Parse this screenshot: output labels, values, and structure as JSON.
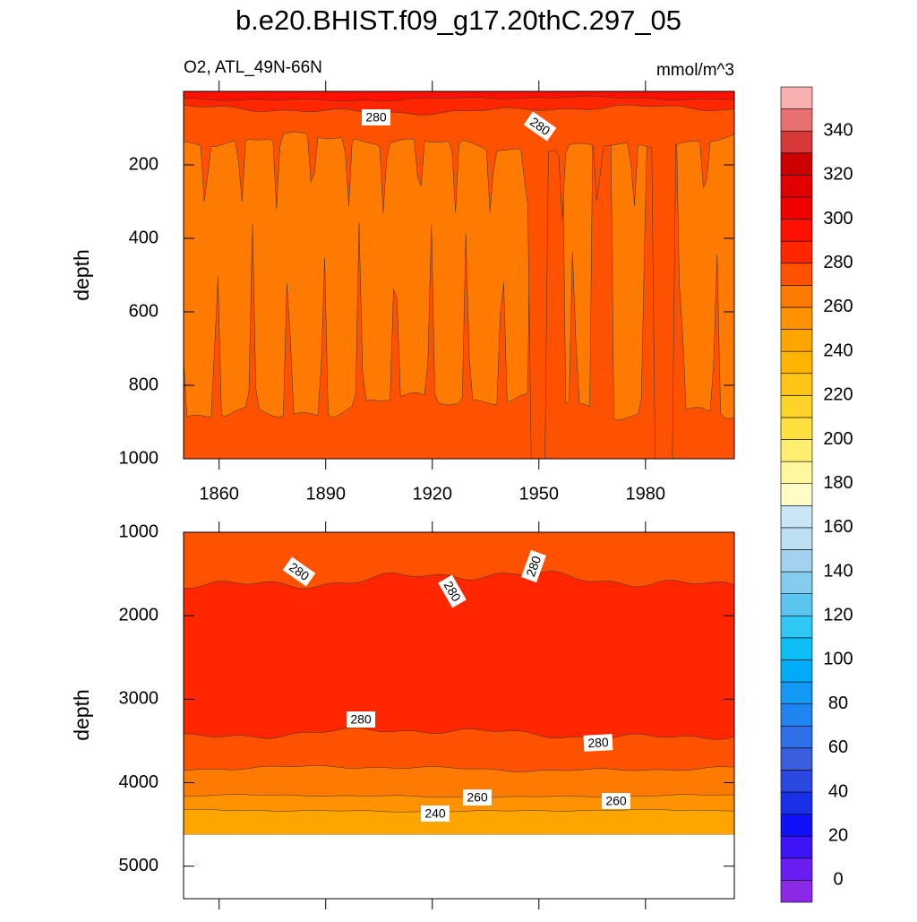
{
  "chart_data": {
    "type": "contour",
    "title": "b.e20.BHIST.f09_g17.20thC.297_05",
    "subtitle": "O2, ATL_49N-66N",
    "units": "mmol/m^3",
    "ylabel": "depth",
    "xlim": [
      1850,
      2005
    ],
    "xticks": [
      1860,
      1890,
      1920,
      1950,
      1980
    ],
    "panels": [
      {
        "ylim": [
          0,
          1000
        ],
        "yticks": [
          200,
          400,
          600,
          800,
          1000
        ],
        "contour_labels": [
          280,
          280
        ]
      },
      {
        "ylim": [
          1000,
          5390
        ],
        "yticks": [
          1000,
          2000,
          3000,
          4000,
          5000
        ],
        "contour_labels": [
          280,
          280,
          280,
          280,
          280,
          260,
          260,
          240
        ]
      }
    ],
    "levels": [
      -10,
      0,
      10,
      20,
      30,
      40,
      50,
      60,
      70,
      80,
      90,
      100,
      110,
      120,
      130,
      140,
      150,
      160,
      170,
      180,
      190,
      200,
      210,
      220,
      230,
      240,
      250,
      260,
      270,
      280,
      290,
      300,
      310,
      320,
      330,
      340,
      350,
      360
    ],
    "level_labels": [
      0,
      20,
      40,
      60,
      80,
      100,
      120,
      140,
      160,
      180,
      200,
      220,
      240,
      260,
      280,
      300,
      320,
      340
    ],
    "colors": [
      "#8a2ae6",
      "#6a1ef2",
      "#3c14f5",
      "#1010f8",
      "#1a30e6",
      "#2a48e0",
      "#3a5ede",
      "#2f70e8",
      "#1f84f0",
      "#1498f5",
      "#00acf8",
      "#10bef6",
      "#30c8f4",
      "#5ac6f0",
      "#84ccee",
      "#a2d2ee",
      "#bcdff2",
      "#c8e6f6",
      "#fffcc8",
      "#fff6a0",
      "#ffee70",
      "#ffe040",
      "#ffd428",
      "#ffc414",
      "#ffb400",
      "#ffa500",
      "#ff9200",
      "#ff7a00",
      "#ff5200",
      "#ff2600",
      "#ff1000",
      "#f00000",
      "#e00000",
      "#cc0000",
      "#d83838",
      "#e87070",
      "#f8b0b0"
    ]
  }
}
